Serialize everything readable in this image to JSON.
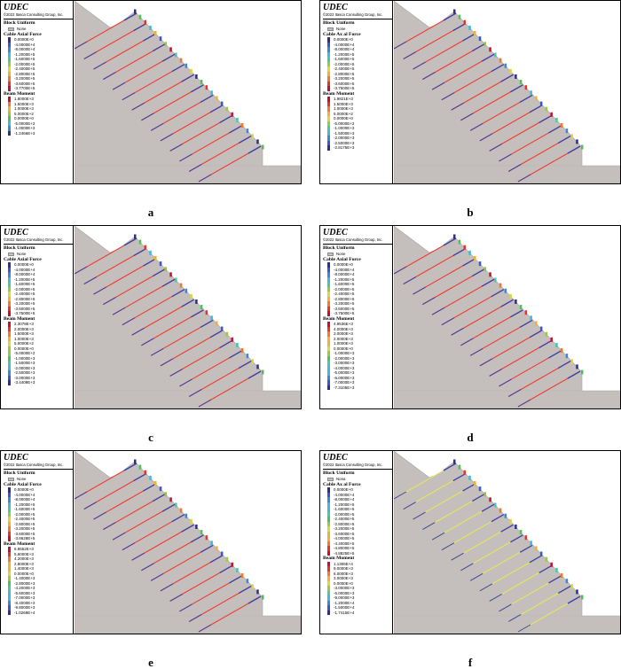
{
  "colors": {
    "slope": "#c4bfbd",
    "ground_line": "#a8a3a1",
    "cable": "#ef3b2c",
    "cable_alt": "#e6e65a",
    "anchor_blue": "#3b3fa8",
    "scale": [
      "#2b2f8f",
      "#3b58c4",
      "#3e86d4",
      "#44b8d8",
      "#46c9a9",
      "#4fbf5a",
      "#96cc3c",
      "#dcd83a",
      "#f2b230",
      "#f07a2a",
      "#e8332a",
      "#c8102e"
    ]
  },
  "panels": [
    {
      "caption": "a",
      "legend": {
        "logo": "UDEC",
        "copyright": "©2022 Itasca Consulting Group, Inc.",
        "block_title": "Block Uniform",
        "block_none": "None",
        "cable_title": "Cable Axial Force",
        "cable_values": [
          "0.0000E+0",
          "-4.0000E+4",
          "-8.0000E+4",
          "-1.2000E+5",
          "-1.6000E+5",
          "-2.0000E+5",
          "-2.4000E+5",
          "-2.8000E+5",
          "-3.2000E+5",
          "-3.6000E+5",
          "-3.7700E+5"
        ],
        "beam_title": "Beam Moment",
        "beam_values": [
          "1.8000E+3",
          "1.5000E+3",
          "1.0000E+3",
          "5.0000E+2",
          "0.0000E+0",
          "-5.0000E+2",
          "-1.0000E+3",
          "-1.2466E+3"
        ]
      }
    },
    {
      "caption": "b",
      "legend": {
        "logo": "UDEC",
        "copyright": "©2022 Itasca Consulting Group, Inc.",
        "block_title": "Block Uniform",
        "block_none": "None",
        "cable_title": "Cable Ax al Force",
        "cable_values": [
          "0.0000E+0",
          "-4.0000E+4",
          "-8.0000E+4",
          "-1.2000E+5",
          "-1.6000E+5",
          "-2.0000E+5",
          "-2.4000E+5",
          "-2.8000E+5",
          "-3.2000E+5",
          "-3.6000E+5",
          "-3.7500E+5"
        ],
        "beam_title": "Beam Moment",
        "beam_values": [
          "1.9821E+3",
          "1.5000E+3",
          "1.0000E+3",
          "5.0000E+2",
          "0.0000E+0",
          "-5.0000E+2",
          "-1.0000E+3",
          "-1.5000E+3",
          "-2.0000E+3",
          "-2.5000E+3",
          "-2.8175E+3"
        ]
      }
    },
    {
      "caption": "c",
      "legend": {
        "logo": "UDEC",
        "copyright": "©2022 Itasca Consulting Group, Inc.",
        "block_title": "Block Uniform",
        "block_none": "None",
        "cable_title": "Cable Axial Force",
        "cable_values": [
          "0.0000E+0",
          "-4.0000E+4",
          "-8.0000E+4",
          "-1.2000E+5",
          "-1.6000E+5",
          "-2.0000E+5",
          "-2.4000E+5",
          "-2.8000E+5",
          "-3.2000E+5",
          "-3.6000E+5",
          "-3.7500E+5"
        ],
        "beam_title": "Beam Moment",
        "beam_values": [
          "2.3078E+3",
          "2.0000E+3",
          "1.5000E+3",
          "1.0000E+3",
          "5.0000E+2",
          "0.0000E+0",
          "-5.0000E+2",
          "-1.0000E+3",
          "-1.5000E+3",
          "-2.0000E+3",
          "-2.5000E+3",
          "-3.0000E+3",
          "-3.4409E+3"
        ]
      }
    },
    {
      "caption": "d",
      "legend": {
        "logo": "UDEC",
        "copyright": "©2022 Itasca Consulting Group, Inc.",
        "block_title": "Block Uniform",
        "block_none": "None",
        "cable_title": "Cable Axial Force",
        "cable_values": [
          "0.0000E+0",
          "-4.0000E+4",
          "-8.0000E+4",
          "-1.2000E+5",
          "-1.6000E+5",
          "-2.0000E+5",
          "-2.4000E+5",
          "-2.8000E+5",
          "-3.2000E+5",
          "-3.6000E+5",
          "-3.7500E+5"
        ],
        "beam_title": "Beam Moment",
        "beam_values": [
          "4.9536E+3",
          "4.0000E+3",
          "3.0000E+3",
          "2.0000E+3",
          "1.0000E+3",
          "0.0000E+0",
          "-1.0000E+3",
          "-2.0000E+3",
          "-3.0000E+3",
          "-4.0000E+3",
          "-5.0000E+3",
          "-6.0000E+3",
          "-7.0000E+3",
          "-7.3105E+3"
        ]
      }
    },
    {
      "caption": "e",
      "legend": {
        "logo": "UDEC",
        "copyright": "©2022 Itasca Consulting Group, Inc.",
        "block_title": "Block Uniform",
        "block_none": "None",
        "cable_title": "Cable Axial Force",
        "cable_values": [
          "0.0000E+0",
          "-4.0000E+4",
          "-8.0000E+4",
          "-1.2000E+5",
          "-1.6000E+5",
          "-2.0000E+5",
          "-2.4000E+5",
          "-2.8000E+5",
          "-3.2000E+5",
          "-3.6000E+5",
          "-3.8628E+5"
        ],
        "beam_title": "Beam Moment",
        "beam_values": [
          "6.8552E+3",
          "5.6000E+3",
          "4.2000E+3",
          "2.8000E+3",
          "1.4000E+3",
          "0.0000E+0",
          "-1.4000E+3",
          "-2.8000E+3",
          "-4.2000E+3",
          "-5.6000E+3",
          "-7.0000E+3",
          "-8.4000E+3",
          "-9.8000E+3",
          "-1.0269E+4"
        ]
      }
    },
    {
      "caption": "f",
      "legend": {
        "logo": "UDEC",
        "copyright": "©2022 Itasca Consulting Group, Inc.",
        "block_title": "Block Uniform",
        "block_none": "Nona",
        "cable_title": "Cable Ax al Force",
        "cable_values": [
          "0.0000E+0",
          "-4.0000E+4",
          "-8.0000E+4",
          "-1.2000E+5",
          "-1.6000E+5",
          "-2.0000E+5",
          "-2.4000E+5",
          "-2.8000E+5",
          "-3.2000E+5",
          "-3.6000E+5",
          "-4.0000E+5",
          "-4.4000E+5",
          "-4.8000E+5",
          "-4.8825E+5"
        ],
        "beam_title": "Beam Moment",
        "beam_values": [
          "1.1306E+4",
          "9.0000E+3",
          "6.0000E+3",
          "3.0000E+3",
          "0.0000E+0",
          "-3.0000E+3",
          "-6.0000E+3",
          "-9.0000E+3",
          "-1.2000E+4",
          "-1.5000E+4",
          "-1.7415E+4"
        ]
      }
    }
  ]
}
